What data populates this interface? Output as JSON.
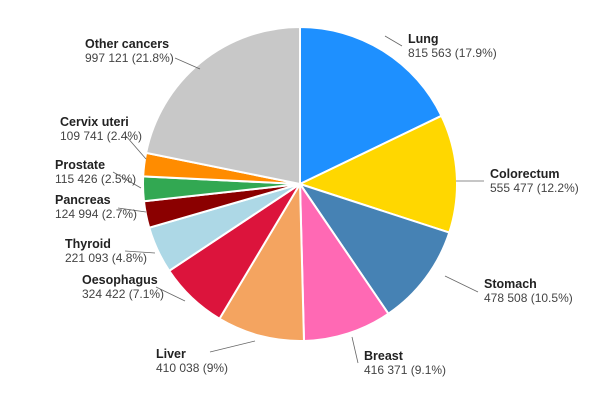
{
  "chart_data": {
    "type": "pie",
    "title": "",
    "start_angle_deg": 0,
    "direction": "clockwise",
    "slices": [
      {
        "name": "Lung",
        "value_text": "815 563 (17.9%)",
        "value": 815563,
        "percent": 17.9,
        "color": "#1E90FF"
      },
      {
        "name": "Colorectum",
        "value_text": "555 477 (12.2%)",
        "value": 555477,
        "percent": 12.2,
        "color": "#FFD700"
      },
      {
        "name": "Stomach",
        "value_text": "478 508 (10.5%)",
        "value": 478508,
        "percent": 10.5,
        "color": "#4682B4"
      },
      {
        "name": "Breast",
        "value_text": "416 371 (9.1%)",
        "value": 416371,
        "percent": 9.1,
        "color": "#FF69B4"
      },
      {
        "name": "Liver",
        "value_text": "410 038 (9%)",
        "value": 410038,
        "percent": 9.0,
        "color": "#F4A460"
      },
      {
        "name": "Oesophagus",
        "value_text": "324 422 (7.1%)",
        "value": 324422,
        "percent": 7.1,
        "color": "#DC143C"
      },
      {
        "name": "Thyroid",
        "value_text": "221 093 (4.8%)",
        "value": 221093,
        "percent": 4.8,
        "color": "#ADD8E6"
      },
      {
        "name": "Pancreas",
        "value_text": "124 994 (2.7%)",
        "value": 124994,
        "percent": 2.7,
        "color": "#8B0000"
      },
      {
        "name": "Prostate",
        "value_text": "115 426 (2.5%)",
        "value": 115426,
        "percent": 2.5,
        "color": "#32A852"
      },
      {
        "name": "Cervix uteri",
        "value_text": "109 741 (2.4%)",
        "value": 109741,
        "percent": 2.4,
        "color": "#FF8C00"
      },
      {
        "name": "Other cancers",
        "value_text": "997 121 (21.8%)",
        "value": 997121,
        "percent": 21.8,
        "color": "#C8C8C8"
      }
    ]
  }
}
